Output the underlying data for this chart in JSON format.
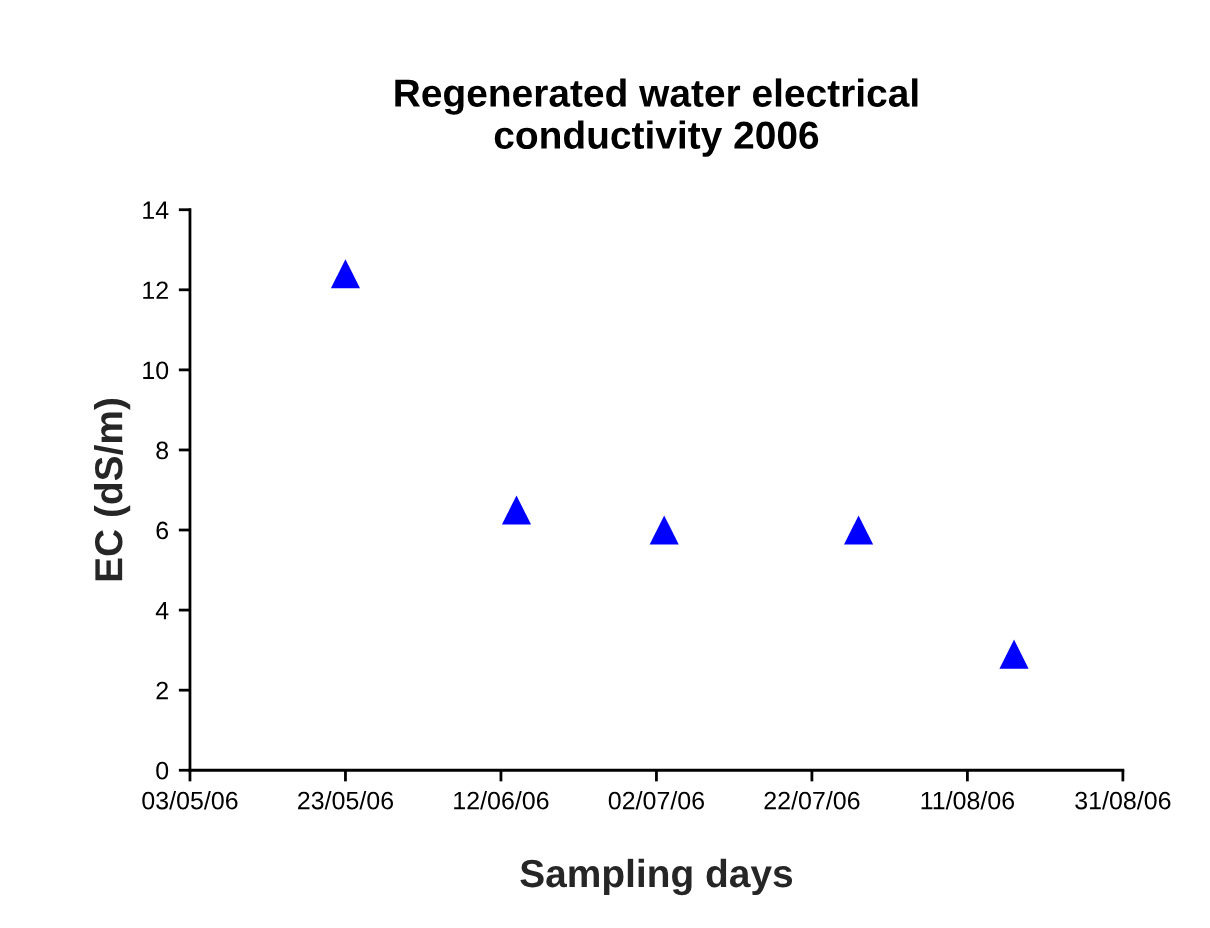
{
  "chart_data": {
    "type": "scatter",
    "title": "Regenerated water electrical\nconductivity 2006",
    "xlabel": "Sampling days",
    "ylabel": "EC (dS/m)",
    "x": [
      "2006-05-23",
      "2006-06-14",
      "2006-07-03",
      "2006-07-28",
      "2006-08-17"
    ],
    "series": [
      {
        "color": "#0000ff",
        "values": [
          12.4,
          6.5,
          6.0,
          6.0,
          2.9
        ]
      }
    ],
    "marker": "triangle",
    "grid": false,
    "xlim": [
      "2006-05-03",
      "2006-08-31"
    ],
    "xticks": [
      {
        "value": "2006-05-03",
        "label": "03/05/06"
      },
      {
        "value": "2006-05-23",
        "label": "23/05/06"
      },
      {
        "value": "2006-06-12",
        "label": "12/06/06"
      },
      {
        "value": "2006-07-02",
        "label": "02/07/06"
      },
      {
        "value": "2006-07-22",
        "label": "22/07/06"
      },
      {
        "value": "2006-08-11",
        "label": "11/08/06"
      },
      {
        "value": "2006-08-31",
        "label": "31/08/06"
      }
    ],
    "ylim": [
      0,
      14
    ],
    "yticks": [
      0,
      2,
      4,
      6,
      8,
      10,
      12,
      14
    ]
  }
}
